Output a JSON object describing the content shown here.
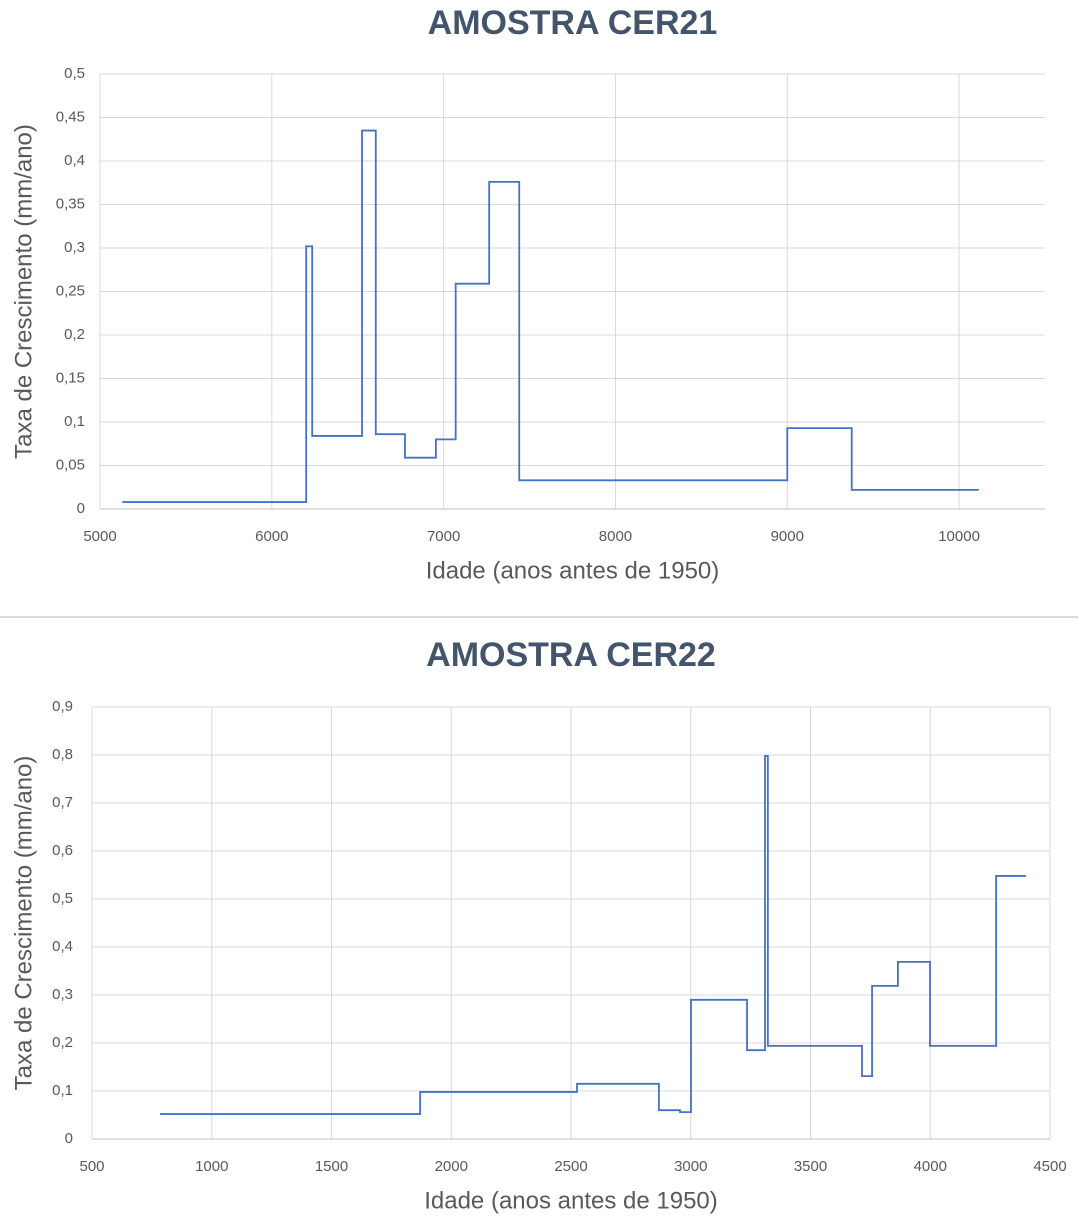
{
  "chart_data": [
    {
      "type": "line",
      "title": "AMOSTRA CER21",
      "xlabel": "Idade (anos antes de 1950)",
      "ylabel": "Taxa de Crescimento (mm/ano)",
      "x": [
        5130,
        6200,
        6200,
        6235,
        6235,
        6525,
        6525,
        6605,
        6605,
        6775,
        6775,
        6955,
        6955,
        7070,
        7070,
        7265,
        7265,
        7440,
        7440,
        9000,
        9000,
        9375,
        9375,
        10115
      ],
      "values": [
        0.008,
        0.008,
        0.302,
        0.302,
        0.084,
        0.084,
        0.435,
        0.435,
        0.086,
        0.086,
        0.059,
        0.059,
        0.08,
        0.08,
        0.259,
        0.259,
        0.376,
        0.376,
        0.033,
        0.033,
        0.093,
        0.093,
        0.022,
        0.022
      ],
      "color": "#4472c4",
      "grid": true,
      "xlim": [
        5000,
        10500
      ],
      "xticks": [
        5000,
        6000,
        7000,
        8000,
        9000,
        10000
      ],
      "ylim": [
        0,
        0.5
      ],
      "yticks": [
        0,
        {
          "value": 0.05,
          "label": "0,05"
        },
        {
          "value": 0.1,
          "label": "0,1"
        },
        {
          "value": 0.15,
          "label": "0,15"
        },
        {
          "value": 0.2,
          "label": "0,2"
        },
        {
          "value": 0.25,
          "label": "0,25"
        },
        {
          "value": 0.3,
          "label": "0,3"
        },
        {
          "value": 0.35,
          "label": "0,35"
        },
        {
          "value": 0.4,
          "label": "0,4"
        },
        {
          "value": 0.45,
          "label": "0,45"
        },
        {
          "value": 0.5,
          "label": "0,5"
        }
      ]
    },
    {
      "type": "line",
      "title": "AMOSTRA CER22",
      "xlabel": "Idade (anos antes de 1950)",
      "ylabel": "Taxa de Crescimento (mm/ano)",
      "x": [
        784,
        1870,
        1870,
        2525,
        2525,
        2867,
        2867,
        2955,
        2955,
        3001,
        3001,
        3235,
        3235,
        3310,
        3310,
        3322,
        3322,
        3715,
        3715,
        3757,
        3757,
        3865,
        3865,
        3999,
        3999,
        4275,
        4275,
        4400
      ],
      "values": [
        0.052,
        0.052,
        0.098,
        0.098,
        0.115,
        0.115,
        0.06,
        0.06,
        0.056,
        0.056,
        0.29,
        0.29,
        0.185,
        0.185,
        0.798,
        0.798,
        0.194,
        0.194,
        0.131,
        0.131,
        0.319,
        0.319,
        0.369,
        0.369,
        0.194,
        0.194,
        0.548,
        0.548
      ],
      "color": "#4472c4",
      "grid": true,
      "xlim": [
        500,
        4500
      ],
      "xticks": [
        500,
        1000,
        1500,
        2000,
        2500,
        3000,
        3500,
        4000,
        4500
      ],
      "ylim": [
        0,
        0.9
      ],
      "yticks": [
        0,
        {
          "value": 0.1,
          "label": "0,1"
        },
        {
          "value": 0.2,
          "label": "0,2"
        },
        {
          "value": 0.3,
          "label": "0,3"
        },
        {
          "value": 0.4,
          "label": "0,4"
        },
        {
          "value": 0.5,
          "label": "0,5"
        },
        {
          "value": 0.6,
          "label": "0,6"
        },
        {
          "value": 0.7,
          "label": "0,7"
        },
        {
          "value": 0.8,
          "label": "0,8"
        },
        {
          "value": 0.9,
          "label": "0,9"
        }
      ]
    }
  ]
}
